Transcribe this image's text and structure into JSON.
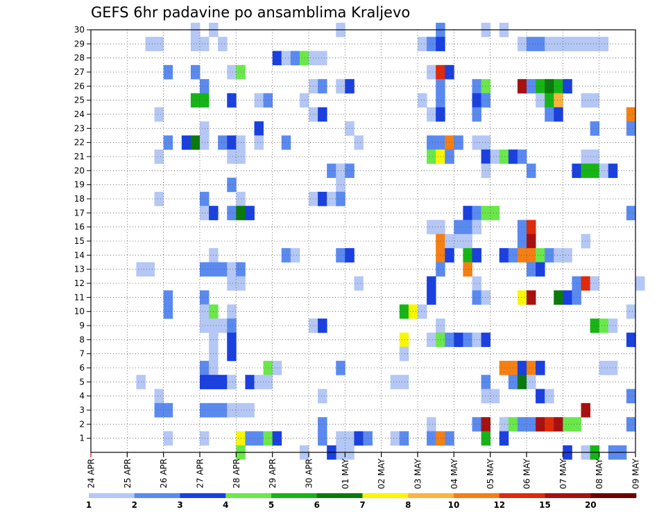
{
  "chart_data": {
    "type": "heatmap",
    "title": "GEFS 6hr padavine po ansamblima Kraljevo",
    "x_ticks": [
      "24 APR",
      "25 APR",
      "26 APR",
      "27 APR",
      "28 APR",
      "29 APR",
      "30 APR",
      "01 MAY",
      "02 MAY",
      "03 MAY",
      "04 MAY",
      "05 MAY",
      "06 MAY",
      "07 MAY",
      "08 MAY",
      "09 MAY"
    ],
    "y_ticks": [
      "1",
      "2",
      "3",
      "4",
      "5",
      "6",
      "7",
      "8",
      "9",
      "10",
      "11",
      "12",
      "13",
      "14",
      "15",
      "16",
      "17",
      "18",
      "19",
      "20",
      "21",
      "22",
      "23",
      "24",
      "25",
      "26",
      "27",
      "28",
      "29",
      "30"
    ],
    "x_steps_per_day": 4,
    "y_range": [
      0,
      30
    ],
    "grid": true,
    "colorbar": {
      "labels": [
        "1",
        "2",
        "3",
        "4",
        "5",
        "6",
        "7",
        "8",
        "10",
        "12",
        "15",
        "20"
      ],
      "colors": [
        "#b4c7f5",
        "#5a8af0",
        "#1a40e0",
        "#6ae84a",
        "#16b516",
        "#0a7a0a",
        "#f7f700",
        "#fbb43c",
        "#f57f12",
        "#e02a0a",
        "#a81010",
        "#700000"
      ]
    },
    "cells_note": "cells: [x_step_index_from_24APR_00z, member_row, color_class_index]",
    "cells": [
      [
        27,
        0,
        0
      ],
      [
        23,
        0,
        0
      ],
      [
        28,
        0,
        0
      ],
      [
        27,
        1,
        0
      ],
      [
        11,
        30,
        0
      ],
      [
        13,
        30,
        0
      ],
      [
        43,
        30,
        0
      ],
      [
        45,
        30,
        0
      ],
      [
        27,
        30,
        0
      ],
      [
        38,
        30,
        1
      ],
      [
        6,
        29,
        0
      ],
      [
        7,
        29,
        0
      ],
      [
        11,
        29,
        0
      ],
      [
        12,
        29,
        0
      ],
      [
        14,
        29,
        0
      ],
      [
        36,
        29,
        0
      ],
      [
        37,
        29,
        1
      ],
      [
        38,
        29,
        2
      ],
      [
        47,
        29,
        0
      ],
      [
        48,
        29,
        1
      ],
      [
        49,
        29,
        1
      ],
      [
        50,
        29,
        0
      ],
      [
        51,
        29,
        0
      ],
      [
        52,
        29,
        0
      ],
      [
        53,
        29,
        0
      ],
      [
        54,
        29,
        0
      ],
      [
        55,
        29,
        0
      ],
      [
        56,
        29,
        0
      ],
      [
        20,
        28,
        2
      ],
      [
        21,
        28,
        0
      ],
      [
        22,
        28,
        1
      ],
      [
        23,
        28,
        3
      ],
      [
        24,
        28,
        0
      ],
      [
        25,
        28,
        0
      ],
      [
        8,
        27,
        1
      ],
      [
        11,
        27,
        1
      ],
      [
        15,
        27,
        0
      ],
      [
        16,
        27,
        3
      ],
      [
        37,
        27,
        0
      ],
      [
        38,
        27,
        9
      ],
      [
        39,
        27,
        2
      ],
      [
        12,
        26,
        1
      ],
      [
        24,
        26,
        0
      ],
      [
        25,
        26,
        1
      ],
      [
        27,
        26,
        0
      ],
      [
        28,
        26,
        2
      ],
      [
        38,
        26,
        1
      ],
      [
        42,
        26,
        1
      ],
      [
        43,
        26,
        3
      ],
      [
        47,
        26,
        10
      ],
      [
        48,
        26,
        1
      ],
      [
        49,
        26,
        4
      ],
      [
        50,
        26,
        5
      ],
      [
        51,
        26,
        4
      ],
      [
        52,
        26,
        2
      ],
      [
        11,
        25,
        4
      ],
      [
        12,
        25,
        4
      ],
      [
        15,
        25,
        2
      ],
      [
        18,
        25,
        0
      ],
      [
        19,
        25,
        1
      ],
      [
        23,
        25,
        0
      ],
      [
        36,
        25,
        0
      ],
      [
        38,
        25,
        1
      ],
      [
        42,
        25,
        2
      ],
      [
        43,
        25,
        1
      ],
      [
        49,
        25,
        0
      ],
      [
        50,
        25,
        4
      ],
      [
        51,
        25,
        7
      ],
      [
        54,
        25,
        0
      ],
      [
        55,
        25,
        0
      ],
      [
        7,
        24,
        0
      ],
      [
        24,
        24,
        0
      ],
      [
        25,
        24,
        2
      ],
      [
        37,
        24,
        0
      ],
      [
        38,
        24,
        2
      ],
      [
        42,
        24,
        1
      ],
      [
        50,
        24,
        1
      ],
      [
        51,
        24,
        2
      ],
      [
        59,
        24,
        8
      ],
      [
        12,
        23,
        0
      ],
      [
        18,
        23,
        2
      ],
      [
        28,
        23,
        0
      ],
      [
        55,
        23,
        1
      ],
      [
        59,
        23,
        1
      ],
      [
        8,
        22,
        1
      ],
      [
        10,
        22,
        2
      ],
      [
        11,
        22,
        5
      ],
      [
        12,
        22,
        0
      ],
      [
        14,
        22,
        1
      ],
      [
        15,
        22,
        2
      ],
      [
        16,
        22,
        0
      ],
      [
        18,
        22,
        0
      ],
      [
        21,
        22,
        1
      ],
      [
        29,
        22,
        0
      ],
      [
        37,
        22,
        1
      ],
      [
        38,
        22,
        1
      ],
      [
        39,
        22,
        8
      ],
      [
        40,
        22,
        1
      ],
      [
        42,
        22,
        0
      ],
      [
        43,
        22,
        0
      ],
      [
        7,
        21,
        0
      ],
      [
        15,
        21,
        0
      ],
      [
        16,
        21,
        0
      ],
      [
        37,
        21,
        3
      ],
      [
        38,
        21,
        6
      ],
      [
        39,
        21,
        1
      ],
      [
        43,
        21,
        2
      ],
      [
        44,
        21,
        0
      ],
      [
        45,
        21,
        3
      ],
      [
        46,
        21,
        2
      ],
      [
        47,
        21,
        1
      ],
      [
        54,
        21,
        0
      ],
      [
        55,
        21,
        0
      ],
      [
        26,
        20,
        1
      ],
      [
        27,
        20,
        0
      ],
      [
        28,
        20,
        1
      ],
      [
        43,
        20,
        0
      ],
      [
        48,
        20,
        1
      ],
      [
        53,
        20,
        2
      ],
      [
        54,
        20,
        4
      ],
      [
        55,
        20,
        4
      ],
      [
        56,
        20,
        0
      ],
      [
        57,
        20,
        2
      ],
      [
        27,
        19,
        0
      ],
      [
        15,
        19,
        1
      ],
      [
        7,
        18,
        0
      ],
      [
        12,
        18,
        1
      ],
      [
        16,
        18,
        0
      ],
      [
        24,
        18,
        0
      ],
      [
        25,
        18,
        2
      ],
      [
        26,
        18,
        0
      ],
      [
        27,
        18,
        1
      ],
      [
        12,
        17,
        0
      ],
      [
        13,
        17,
        2
      ],
      [
        15,
        17,
        1
      ],
      [
        16,
        17,
        5
      ],
      [
        17,
        17,
        2
      ],
      [
        41,
        17,
        2
      ],
      [
        42,
        17,
        1
      ],
      [
        43,
        17,
        3
      ],
      [
        44,
        17,
        3
      ],
      [
        59,
        17,
        1
      ],
      [
        37,
        16,
        0
      ],
      [
        38,
        16,
        0
      ],
      [
        40,
        16,
        1
      ],
      [
        41,
        16,
        1
      ],
      [
        42,
        16,
        0
      ],
      [
        47,
        16,
        1
      ],
      [
        48,
        16,
        9
      ],
      [
        38,
        15,
        8
      ],
      [
        39,
        15,
        0
      ],
      [
        40,
        15,
        0
      ],
      [
        41,
        15,
        0
      ],
      [
        47,
        15,
        1
      ],
      [
        48,
        15,
        10
      ],
      [
        54,
        15,
        0
      ],
      [
        13,
        14,
        0
      ],
      [
        21,
        14,
        1
      ],
      [
        22,
        14,
        0
      ],
      [
        27,
        14,
        1
      ],
      [
        28,
        14,
        2
      ],
      [
        38,
        14,
        8
      ],
      [
        39,
        14,
        2
      ],
      [
        41,
        14,
        4
      ],
      [
        42,
        14,
        2
      ],
      [
        45,
        14,
        2
      ],
      [
        46,
        14,
        1
      ],
      [
        47,
        14,
        8
      ],
      [
        48,
        14,
        8
      ],
      [
        49,
        14,
        3
      ],
      [
        50,
        14,
        1
      ],
      [
        51,
        14,
        0
      ],
      [
        52,
        14,
        0
      ],
      [
        5,
        13,
        0
      ],
      [
        6,
        13,
        0
      ],
      [
        12,
        13,
        1
      ],
      [
        13,
        13,
        1
      ],
      [
        14,
        13,
        1
      ],
      [
        15,
        13,
        0
      ],
      [
        16,
        13,
        1
      ],
      [
        38,
        13,
        1
      ],
      [
        41,
        13,
        8
      ],
      [
        48,
        13,
        1
      ],
      [
        49,
        13,
        2
      ],
      [
        15,
        12,
        0
      ],
      [
        16,
        12,
        0
      ],
      [
        29,
        12,
        0
      ],
      [
        37,
        12,
        2
      ],
      [
        42,
        12,
        0
      ],
      [
        53,
        12,
        1
      ],
      [
        54,
        12,
        9
      ],
      [
        55,
        12,
        0
      ],
      [
        60,
        12,
        0
      ],
      [
        8,
        11,
        1
      ],
      [
        12,
        11,
        1
      ],
      [
        37,
        11,
        2
      ],
      [
        42,
        11,
        1
      ],
      [
        43,
        11,
        0
      ],
      [
        47,
        11,
        6
      ],
      [
        48,
        11,
        10
      ],
      [
        51,
        11,
        5
      ],
      [
        52,
        11,
        2
      ],
      [
        53,
        11,
        1
      ],
      [
        8,
        10,
        1
      ],
      [
        12,
        10,
        0
      ],
      [
        13,
        10,
        3
      ],
      [
        15,
        10,
        0
      ],
      [
        34,
        10,
        4
      ],
      [
        35,
        10,
        6
      ],
      [
        36,
        10,
        0
      ],
      [
        59,
        10,
        0
      ],
      [
        12,
        9,
        0
      ],
      [
        13,
        9,
        0
      ],
      [
        14,
        9,
        0
      ],
      [
        15,
        9,
        1
      ],
      [
        24,
        9,
        0
      ],
      [
        25,
        9,
        2
      ],
      [
        38,
        9,
        0
      ],
      [
        55,
        9,
        4
      ],
      [
        56,
        9,
        3
      ],
      [
        57,
        9,
        0
      ],
      [
        13,
        8,
        0
      ],
      [
        15,
        8,
        2
      ],
      [
        34,
        8,
        6
      ],
      [
        37,
        8,
        0
      ],
      [
        38,
        8,
        3
      ],
      [
        39,
        8,
        1
      ],
      [
        40,
        8,
        2
      ],
      [
        41,
        8,
        1
      ],
      [
        42,
        8,
        0
      ],
      [
        43,
        8,
        2
      ],
      [
        59,
        8,
        2
      ],
      [
        13,
        7,
        0
      ],
      [
        15,
        7,
        2
      ],
      [
        34,
        7,
        0
      ],
      [
        12,
        6,
        1
      ],
      [
        13,
        6,
        0
      ],
      [
        19,
        6,
        3
      ],
      [
        20,
        6,
        0
      ],
      [
        27,
        6,
        1
      ],
      [
        45,
        6,
        8
      ],
      [
        46,
        6,
        8
      ],
      [
        47,
        6,
        2
      ],
      [
        48,
        6,
        8
      ],
      [
        49,
        6,
        2
      ],
      [
        56,
        6,
        0
      ],
      [
        57,
        6,
        0
      ],
      [
        5,
        5,
        0
      ],
      [
        12,
        5,
        2
      ],
      [
        13,
        5,
        2
      ],
      [
        14,
        5,
        2
      ],
      [
        15,
        5,
        0
      ],
      [
        17,
        5,
        2
      ],
      [
        18,
        5,
        0
      ],
      [
        19,
        5,
        0
      ],
      [
        33,
        5,
        0
      ],
      [
        34,
        5,
        0
      ],
      [
        43,
        5,
        1
      ],
      [
        46,
        5,
        1
      ],
      [
        47,
        5,
        5
      ],
      [
        48,
        5,
        0
      ],
      [
        7,
        4,
        0
      ],
      [
        25,
        4,
        0
      ],
      [
        43,
        4,
        0
      ],
      [
        44,
        4,
        0
      ],
      [
        49,
        4,
        2
      ],
      [
        50,
        4,
        0
      ],
      [
        59,
        4,
        1
      ],
      [
        7,
        3,
        1
      ],
      [
        8,
        3,
        1
      ],
      [
        12,
        3,
        1
      ],
      [
        13,
        3,
        1
      ],
      [
        14,
        3,
        1
      ],
      [
        15,
        3,
        0
      ],
      [
        16,
        3,
        0
      ],
      [
        17,
        3,
        0
      ],
      [
        54,
        3,
        10
      ],
      [
        25,
        2,
        1
      ],
      [
        37,
        2,
        0
      ],
      [
        42,
        2,
        1
      ],
      [
        43,
        2,
        10
      ],
      [
        45,
        2,
        0
      ],
      [
        46,
        2,
        3
      ],
      [
        47,
        2,
        1
      ],
      [
        48,
        2,
        1
      ],
      [
        49,
        2,
        10
      ],
      [
        50,
        2,
        9
      ],
      [
        51,
        2,
        10
      ],
      [
        52,
        2,
        3
      ],
      [
        53,
        2,
        3
      ],
      [
        59,
        2,
        1
      ],
      [
        8,
        1,
        0
      ],
      [
        12,
        1,
        0
      ],
      [
        16,
        1,
        6
      ],
      [
        17,
        1,
        1
      ],
      [
        18,
        1,
        1
      ],
      [
        19,
        1,
        3
      ],
      [
        20,
        1,
        2
      ],
      [
        25,
        1,
        1
      ],
      [
        28,
        1,
        0
      ],
      [
        29,
        1,
        2
      ],
      [
        30,
        1,
        1
      ],
      [
        33,
        1,
        0
      ],
      [
        34,
        1,
        1
      ],
      [
        37,
        1,
        1
      ],
      [
        38,
        1,
        8
      ],
      [
        39,
        1,
        1
      ],
      [
        43,
        1,
        4
      ],
      [
        45,
        1,
        2
      ],
      [
        16,
        0,
        3
      ],
      [
        26,
        0,
        2
      ],
      [
        52,
        0,
        2
      ],
      [
        54,
        0,
        0
      ],
      [
        55,
        0,
        4
      ],
      [
        57,
        0,
        1
      ],
      [
        58,
        0,
        1
      ]
    ]
  }
}
